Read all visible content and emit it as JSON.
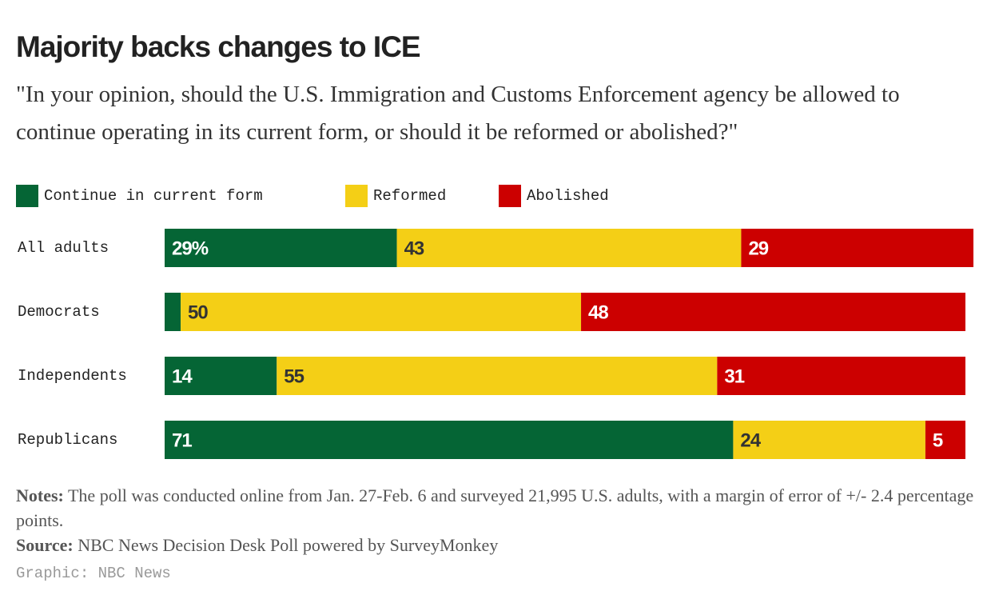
{
  "chart_data": {
    "type": "bar",
    "orientation": "horizontal",
    "stacked": true,
    "title": "Majority backs changes to ICE",
    "subtitle": "\"In your opinion, should the U.S. Immigration and Customs Enforcement agency be allowed to continue operating in its current form, or should it be reformed or abolished?\"",
    "categories": [
      "All adults",
      "Democrats",
      "Independents",
      "Republicans"
    ],
    "series": [
      {
        "name": "Continue in current form",
        "color": "#056535",
        "values": [
          29,
          2,
          14,
          71
        ],
        "value_labels": [
          "29%",
          null,
          "14",
          "71"
        ]
      },
      {
        "name": "Reformed",
        "color": "#f4cf16",
        "values": [
          43,
          50,
          55,
          24
        ]
      },
      {
        "name": "Abolished",
        "color": "#cc0000",
        "values": [
          29,
          48,
          31,
          5
        ]
      }
    ],
    "xlim": [
      0,
      100
    ],
    "notes_label": "Notes:",
    "notes": "The poll was conducted online from Jan. 27-Feb. 6 and surveyed 21,995 U.S. adults, with a margin of error of +/- 2.4 percentage points.",
    "source_label": "Source:",
    "source": "NBC News Decision Desk Poll powered by SurveyMonkey",
    "credit": "Graphic: NBC News"
  }
}
